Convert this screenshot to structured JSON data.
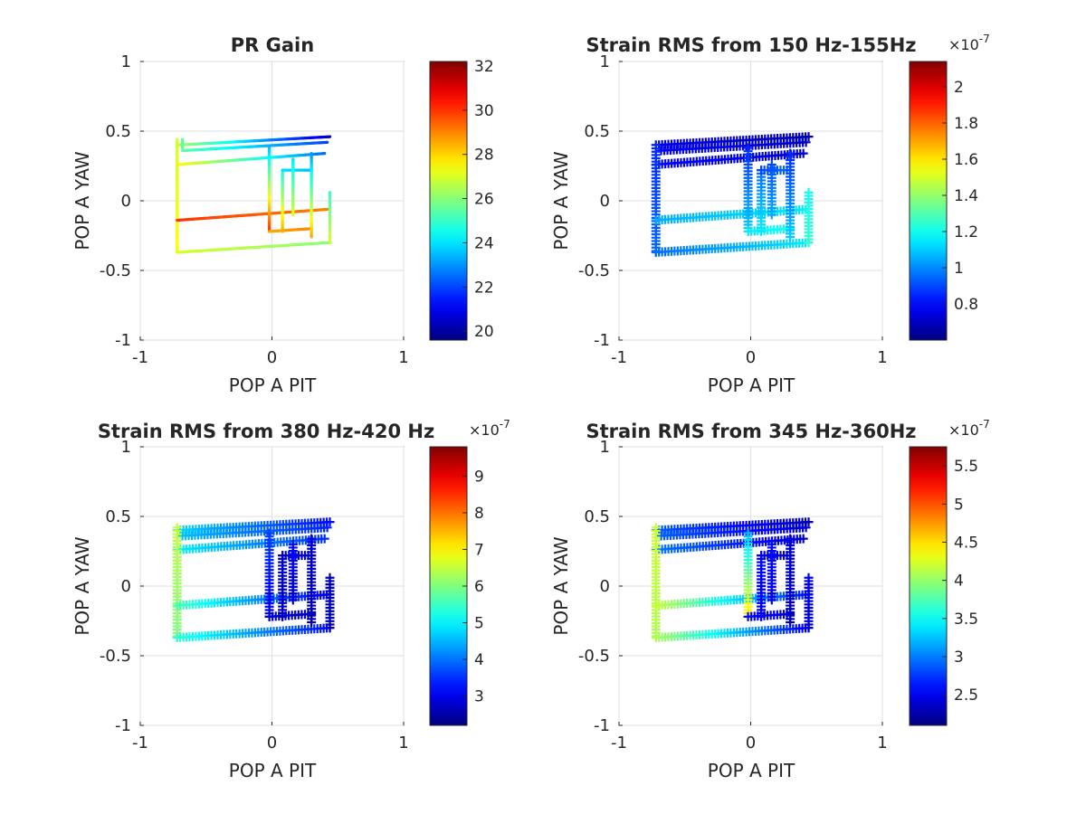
{
  "figure": {
    "background": "#ffffff",
    "colormap": "jet"
  },
  "chart_data": [
    {
      "type": "scatter",
      "title": "PR Gain",
      "xlabel": "POP A PIT",
      "ylabel": "POP A YAW",
      "xlim": [
        -1,
        1
      ],
      "ylim": [
        -1,
        1
      ],
      "xticks": [
        "-1",
        "0",
        "1"
      ],
      "yticks": [
        "1",
        "0.5",
        "0",
        "-0.5",
        "-1"
      ],
      "grid": true,
      "marker": "dot",
      "colorbar": {
        "min": 19.6,
        "max": 32.2,
        "exponent": "",
        "ticks": [
          20,
          22,
          24,
          26,
          28,
          30,
          32
        ],
        "tick_labels": [
          "20",
          "22",
          "24",
          "26",
          "28",
          "30",
          "32"
        ]
      },
      "segments": [
        {
          "from": [
            -0.72,
            0.4
          ],
          "to": [
            0.44,
            0.46
          ],
          "c_from": 26.5,
          "c_to": 20.5
        },
        {
          "from": [
            -0.68,
            0.36
          ],
          "to": [
            0.42,
            0.42
          ],
          "c_from": 25.5,
          "c_to": 22.0
        },
        {
          "from": [
            -0.72,
            0.26
          ],
          "to": [
            0.4,
            0.34
          ],
          "c_from": 27.5,
          "c_to": 22.5
        },
        {
          "from": [
            -0.72,
            0.44
          ],
          "to": [
            -0.72,
            -0.36
          ],
          "c_from": 27.0,
          "c_to": 27.5
        },
        {
          "from": [
            -0.68,
            0.44
          ],
          "to": [
            -0.68,
            0.38
          ],
          "c_from": 25.5,
          "c_to": 25.5
        },
        {
          "from": [
            -0.72,
            -0.14
          ],
          "to": [
            0.44,
            -0.06
          ],
          "c_from": 30.0,
          "c_to": 29.0
        },
        {
          "from": [
            -0.72,
            -0.37
          ],
          "to": [
            0.44,
            -0.3
          ],
          "c_from": 27.0,
          "c_to": 26.0
        },
        {
          "from": [
            -0.02,
            0.38
          ],
          "to": [
            -0.02,
            -0.22
          ],
          "c_from": 23.5,
          "c_to": 30.0
        },
        {
          "from": [
            -0.02,
            -0.22
          ],
          "to": [
            0.3,
            -0.2
          ],
          "c_from": 28.5,
          "c_to": 29.0
        },
        {
          "from": [
            0.08,
            0.22
          ],
          "to": [
            0.08,
            -0.22
          ],
          "c_from": 24.5,
          "c_to": 28.5
        },
        {
          "from": [
            0.08,
            0.22
          ],
          "to": [
            0.3,
            0.22
          ],
          "c_from": 24.0,
          "c_to": 23.5
        },
        {
          "from": [
            0.3,
            0.34
          ],
          "to": [
            0.3,
            -0.26
          ],
          "c_from": 23.0,
          "c_to": 28.5
        },
        {
          "from": [
            0.44,
            0.06
          ],
          "to": [
            0.44,
            -0.3
          ],
          "c_from": 25.0,
          "c_to": 27.0
        },
        {
          "from": [
            0.16,
            0.3
          ],
          "to": [
            0.16,
            -0.1
          ],
          "c_from": 24.0,
          "c_to": 27.0
        }
      ]
    },
    {
      "type": "scatter",
      "title": "Strain RMS from 150 Hz-155Hz",
      "xlabel": "POP A PIT",
      "ylabel": "POP A YAW",
      "xlim": [
        -1,
        1
      ],
      "ylim": [
        -1,
        1
      ],
      "xticks": [
        "-1",
        "0",
        "1"
      ],
      "yticks": [
        "1",
        "0.5",
        "0",
        "-0.5",
        "-1"
      ],
      "grid": true,
      "marker": "plus",
      "colorbar": {
        "min": 0.6,
        "max": 2.14,
        "exponent": "-7",
        "ticks": [
          0.8,
          1.0,
          1.2,
          1.4,
          1.6,
          1.8,
          2.0
        ],
        "tick_labels": [
          "0.8",
          "1",
          "1.2",
          "1.4",
          "1.6",
          "1.8",
          "2"
        ]
      },
      "segments": [
        {
          "from": [
            -0.72,
            0.4
          ],
          "to": [
            0.44,
            0.46
          ],
          "c_from": 0.75,
          "c_to": 0.68
        },
        {
          "from": [
            -0.68,
            0.36
          ],
          "to": [
            0.42,
            0.42
          ],
          "c_from": 0.78,
          "c_to": 0.7
        },
        {
          "from": [
            -0.72,
            0.26
          ],
          "to": [
            0.4,
            0.34
          ],
          "c_from": 0.8,
          "c_to": 0.72
        },
        {
          "from": [
            -0.72,
            0.4
          ],
          "to": [
            -0.72,
            -0.36
          ],
          "c_from": 0.85,
          "c_to": 0.95
        },
        {
          "from": [
            -0.72,
            -0.14
          ],
          "to": [
            0.44,
            -0.06
          ],
          "c_from": 1.05,
          "c_to": 1.15
        },
        {
          "from": [
            -0.72,
            -0.37
          ],
          "to": [
            0.44,
            -0.3
          ],
          "c_from": 0.95,
          "c_to": 1.15
        },
        {
          "from": [
            -0.02,
            0.38
          ],
          "to": [
            -0.02,
            -0.22
          ],
          "c_from": 0.85,
          "c_to": 1.1
        },
        {
          "from": [
            -0.02,
            -0.22
          ],
          "to": [
            0.3,
            -0.2
          ],
          "c_from": 1.15,
          "c_to": 1.2
        },
        {
          "from": [
            0.08,
            0.22
          ],
          "to": [
            0.08,
            -0.22
          ],
          "c_from": 0.95,
          "c_to": 1.15
        },
        {
          "from": [
            0.08,
            0.22
          ],
          "to": [
            0.3,
            0.22
          ],
          "c_from": 0.9,
          "c_to": 0.95
        },
        {
          "from": [
            0.3,
            0.34
          ],
          "to": [
            0.3,
            -0.26
          ],
          "c_from": 0.85,
          "c_to": 1.1
        },
        {
          "from": [
            0.44,
            0.06
          ],
          "to": [
            0.44,
            -0.3
          ],
          "c_from": 1.2,
          "c_to": 1.25
        },
        {
          "from": [
            0.16,
            0.26
          ],
          "to": [
            0.16,
            -0.1
          ],
          "c_from": 0.9,
          "c_to": 1.05
        }
      ]
    },
    {
      "type": "scatter",
      "title": "Strain RMS from 380 Hz-420 Hz",
      "xlabel": "POP A PIT",
      "ylabel": "POP A YAW",
      "xlim": [
        -1,
        1
      ],
      "ylim": [
        -1,
        1
      ],
      "xticks": [
        "-1",
        "0",
        "1"
      ],
      "yticks": [
        "1",
        "0.5",
        "0",
        "-0.5",
        "-1"
      ],
      "grid": true,
      "marker": "plus",
      "colorbar": {
        "min": 2.2,
        "max": 9.8,
        "exponent": "-7",
        "ticks": [
          3,
          4,
          5,
          6,
          7,
          8,
          9
        ],
        "tick_labels": [
          "3",
          "4",
          "5",
          "6",
          "7",
          "8",
          "9"
        ]
      },
      "segments": [
        {
          "from": [
            -0.72,
            0.4
          ],
          "to": [
            0.44,
            0.46
          ],
          "c_from": 4.8,
          "c_to": 3.2
        },
        {
          "from": [
            -0.68,
            0.36
          ],
          "to": [
            0.42,
            0.42
          ],
          "c_from": 4.6,
          "c_to": 3.4
        },
        {
          "from": [
            -0.72,
            0.26
          ],
          "to": [
            0.4,
            0.34
          ],
          "c_from": 5.0,
          "c_to": 3.5
        },
        {
          "from": [
            -0.72,
            0.42
          ],
          "to": [
            -0.72,
            -0.36
          ],
          "c_from": 6.5,
          "c_to": 6.0
        },
        {
          "from": [
            -0.72,
            -0.14
          ],
          "to": [
            0.44,
            -0.06
          ],
          "c_from": 5.6,
          "c_to": 3.0
        },
        {
          "from": [
            -0.72,
            -0.37
          ],
          "to": [
            0.44,
            -0.3
          ],
          "c_from": 5.4,
          "c_to": 3.2
        },
        {
          "from": [
            -0.02,
            0.38
          ],
          "to": [
            -0.02,
            -0.22
          ],
          "c_from": 3.6,
          "c_to": 3.0
        },
        {
          "from": [
            -0.02,
            -0.22
          ],
          "to": [
            0.3,
            -0.2
          ],
          "c_from": 2.8,
          "c_to": 2.7
        },
        {
          "from": [
            0.08,
            0.22
          ],
          "to": [
            0.08,
            -0.22
          ],
          "c_from": 2.9,
          "c_to": 2.8
        },
        {
          "from": [
            0.08,
            0.22
          ],
          "to": [
            0.3,
            0.22
          ],
          "c_from": 2.8,
          "c_to": 2.7
        },
        {
          "from": [
            0.3,
            0.34
          ],
          "to": [
            0.3,
            -0.26
          ],
          "c_from": 2.9,
          "c_to": 2.6
        },
        {
          "from": [
            0.44,
            0.06
          ],
          "to": [
            0.44,
            -0.3
          ],
          "c_from": 2.7,
          "c_to": 2.6
        },
        {
          "from": [
            0.16,
            0.3
          ],
          "to": [
            0.16,
            -0.1
          ],
          "c_from": 3.2,
          "c_to": 2.8
        }
      ]
    },
    {
      "type": "scatter",
      "title": "Strain RMS from 345 Hz-360Hz",
      "xlabel": "POP A PIT",
      "ylabel": "POP A YAW",
      "xlim": [
        -1,
        1
      ],
      "ylim": [
        -1,
        1
      ],
      "xticks": [
        "-1",
        "0",
        "1"
      ],
      "yticks": [
        "1",
        "0.5",
        "0",
        "-0.5",
        "-1"
      ],
      "grid": true,
      "marker": "plus",
      "colorbar": {
        "min": 2.1,
        "max": 5.75,
        "exponent": "-7",
        "ticks": [
          2.5,
          3.0,
          3.5,
          4.0,
          4.5,
          5.0,
          5.5
        ],
        "tick_labels": [
          "2.5",
          "3",
          "3.5",
          "4",
          "4.5",
          "5",
          "5.5"
        ]
      },
      "segments": [
        {
          "from": [
            -0.72,
            0.4
          ],
          "to": [
            0.44,
            0.46
          ],
          "c_from": 2.9,
          "c_to": 2.3
        },
        {
          "from": [
            -0.68,
            0.36
          ],
          "to": [
            0.42,
            0.42
          ],
          "c_from": 2.9,
          "c_to": 2.4
        },
        {
          "from": [
            -0.72,
            0.26
          ],
          "to": [
            0.4,
            0.34
          ],
          "c_from": 3.0,
          "c_to": 2.4
        },
        {
          "from": [
            -0.72,
            0.42
          ],
          "to": [
            -0.72,
            -0.36
          ],
          "c_from": 4.2,
          "c_to": 4.1
        },
        {
          "from": [
            -0.72,
            -0.14
          ],
          "to": [
            0.44,
            -0.06
          ],
          "c_from": 4.2,
          "c_to": 2.6
        },
        {
          "from": [
            -0.72,
            -0.37
          ],
          "to": [
            0.44,
            -0.3
          ],
          "c_from": 4.1,
          "c_to": 2.5
        },
        {
          "from": [
            -0.02,
            0.38
          ],
          "to": [
            -0.02,
            -0.22
          ],
          "c_from": 3.2,
          "c_to": 4.5
        },
        {
          "from": [
            -0.02,
            -0.22
          ],
          "to": [
            0.3,
            -0.2
          ],
          "c_from": 2.6,
          "c_to": 2.4
        },
        {
          "from": [
            0.08,
            0.22
          ],
          "to": [
            0.08,
            -0.22
          ],
          "c_from": 2.6,
          "c_to": 2.5
        },
        {
          "from": [
            0.08,
            0.22
          ],
          "to": [
            0.3,
            0.22
          ],
          "c_from": 2.5,
          "c_to": 2.4
        },
        {
          "from": [
            0.3,
            0.34
          ],
          "to": [
            0.3,
            -0.26
          ],
          "c_from": 2.4,
          "c_to": 2.3
        },
        {
          "from": [
            0.44,
            0.06
          ],
          "to": [
            0.44,
            -0.3
          ],
          "c_from": 2.5,
          "c_to": 2.4
        },
        {
          "from": [
            0.16,
            0.3
          ],
          "to": [
            0.16,
            -0.1
          ],
          "c_from": 2.6,
          "c_to": 2.5
        }
      ]
    }
  ]
}
